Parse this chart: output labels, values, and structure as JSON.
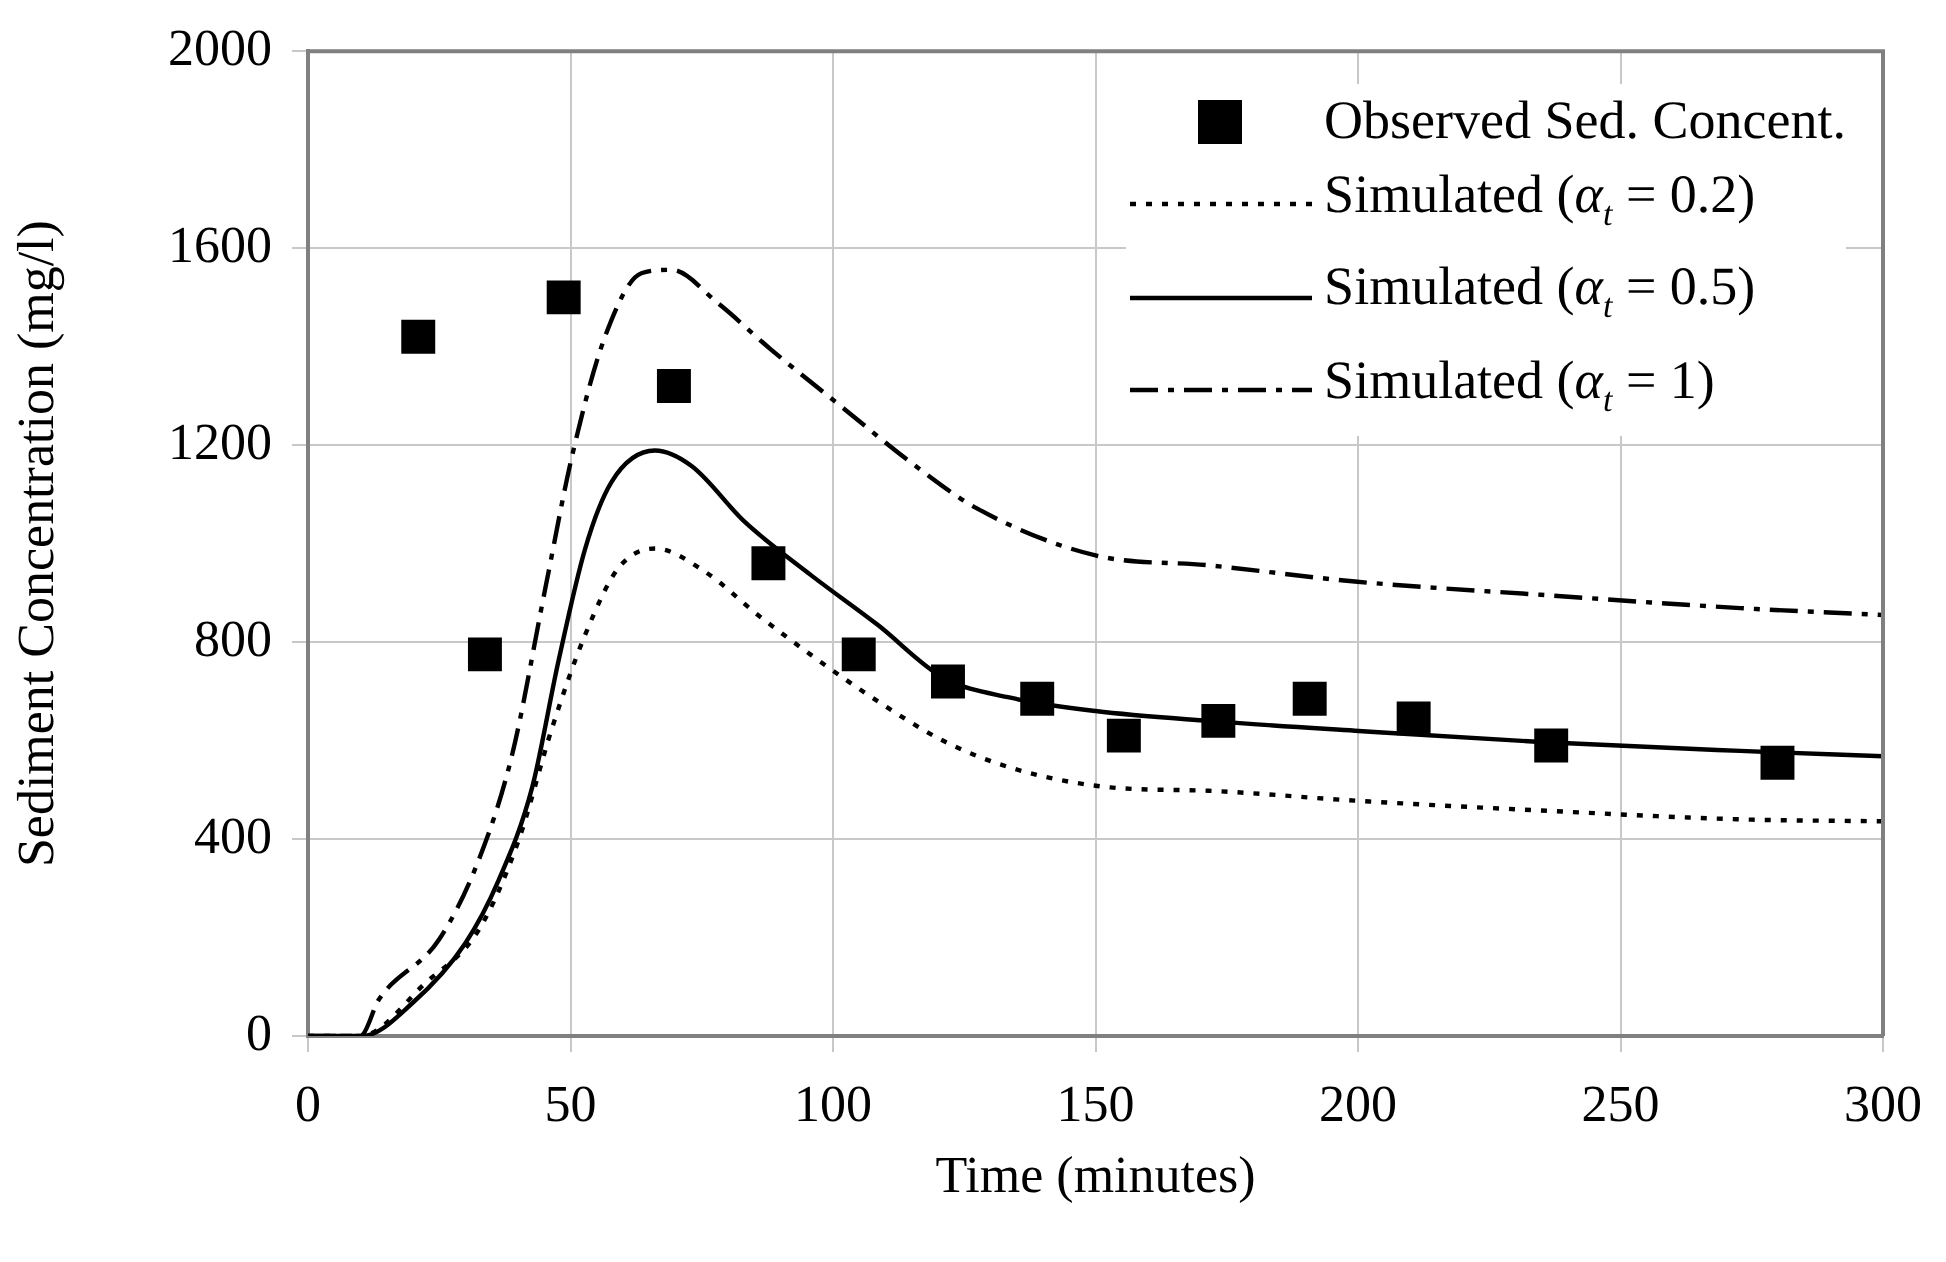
{
  "chart_data": {
    "type": "line",
    "xlabel": "Time (minutes)",
    "ylabel": "Sediment Concentration (mg/l)",
    "xlim": [
      0,
      300
    ],
    "xticks": [
      0,
      50,
      100,
      150,
      200,
      250,
      300
    ],
    "ylim": [
      0,
      2000
    ],
    "yticks": [
      0,
      400,
      800,
      1200,
      1600,
      2000
    ],
    "grid": true,
    "legend": "top right",
    "series": [
      {
        "name": "Observed Sed. Concent.",
        "type": "scatter",
        "marker": "square",
        "color": "#000000",
        "x": [
          21,
          33.7,
          48.7,
          69.7,
          87.7,
          104.9,
          121.9,
          138.9,
          155.4,
          173.4,
          190.8,
          210.6,
          236.8,
          279.9
        ],
        "values": [
          1420,
          775,
          1500,
          1320,
          960,
          775,
          720,
          685,
          610,
          640,
          685,
          645,
          590,
          555
        ]
      },
      {
        "name": "Simulated (α$_{t}$ = 0.2)",
        "line_style": "dotted",
        "marker": "none",
        "color": "#000000",
        "x": [
          0,
          10,
          22.4,
          32.5,
          40.1,
          46.5,
          52.8,
          59.1,
          66.1,
          75.6,
          85.7,
          95.8,
          108.5,
          121.1,
          133.8,
          152.8,
          171.5,
          199.4,
          234.8,
          272.8,
          300
        ],
        "values": [
          0,
          0,
          108,
          215,
          397,
          626,
          815,
          950,
          990,
          943,
          855,
          774,
          680,
          599,
          545,
          505,
          498,
          478,
          458,
          440,
          436
        ]
      },
      {
        "name": "Simulated (α$_{t}$ = 0.5)",
        "line_style": "solid",
        "marker": "none",
        "color": "#000000",
        "x": [
          0,
          10.4,
          19.9,
          30,
          36.3,
          42.7,
          47.7,
          52.8,
          57.8,
          66.1,
          73,
          83.2,
          95.8,
          108.5,
          121.1,
          133.8,
          150,
          171.5,
          199.4,
          234.8,
          272.8,
          300
        ],
        "values": [
          0,
          0,
          67,
          189,
          316,
          505,
          761,
          990,
          1125,
          1189,
          1158,
          1044,
          936,
          835,
          727,
          687,
          660,
          640,
          620,
          597,
          579,
          568
        ]
      },
      {
        "name": "Simulated (α$_{t}$ = 1)",
        "line_style": "dashed",
        "marker": "none",
        "color": "#000000",
        "x": [
          0,
          10,
          13.5,
          24.9,
          32.5,
          38.9,
          45.2,
          50.3,
          56.6,
          63.5,
          69.2,
          78.1,
          88.2,
          102.2,
          114.8,
          127.5,
          150,
          171.5,
          199.4,
          234.8,
          272.8,
          300
        ],
        "values": [
          0,
          0,
          74,
          195,
          357,
          572,
          909,
          1178,
          1421,
          1549,
          1556,
          1488,
          1394,
          1273,
          1165,
          1071,
          976,
          956,
          923,
          896,
          869,
          855
        ]
      }
    ]
  }
}
